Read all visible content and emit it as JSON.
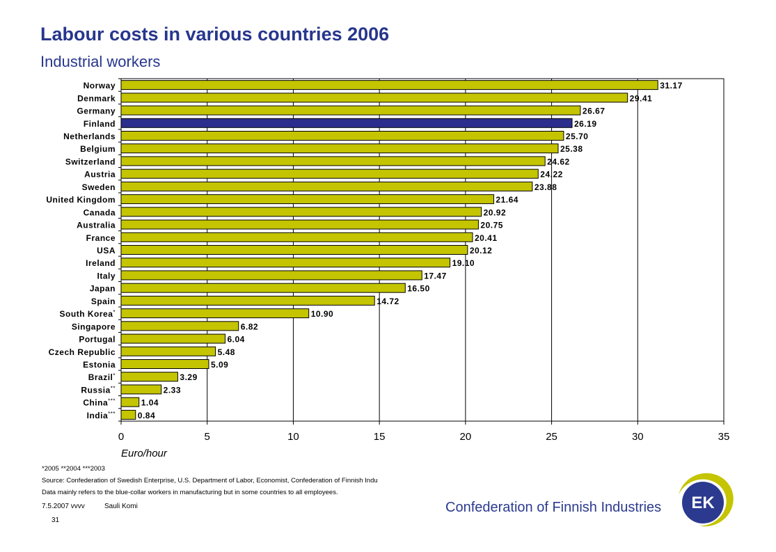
{
  "header": {
    "title": "Labour costs in various countries 2006",
    "subtitle": "Industrial workers"
  },
  "colors": {
    "bar": "#c4c400",
    "highlight_bar": "#2b2e8c",
    "title": "#27368c"
  },
  "chart_data": {
    "type": "bar",
    "orientation": "horizontal",
    "categories": [
      "Norway",
      "Denmark",
      "Germany",
      "Finland",
      "Netherlands",
      "Belgium",
      "Switzerland",
      "Austria",
      "Sweden",
      "United Kingdom",
      "Canada",
      "Australia",
      "France",
      "USA",
      "Ireland",
      "Italy",
      "Japan",
      "Spain",
      "South Korea",
      "Singapore",
      "Portugal",
      "Czech Republic",
      "Estonia",
      "Brazil",
      "Russia",
      "China",
      "India"
    ],
    "category_markers": [
      "",
      "",
      "",
      "",
      "",
      "",
      "",
      "",
      "",
      "",
      "",
      "",
      "",
      "",
      "",
      "",
      "",
      "",
      "*",
      "",
      "",
      "",
      "",
      "*",
      "**",
      "***",
      "***"
    ],
    "values": [
      31.17,
      29.41,
      26.67,
      26.19,
      25.7,
      25.38,
      24.62,
      24.22,
      23.88,
      21.64,
      20.92,
      20.75,
      20.41,
      20.12,
      19.1,
      17.47,
      16.5,
      14.72,
      10.9,
      6.82,
      6.04,
      5.48,
      5.09,
      3.29,
      2.33,
      1.04,
      0.84
    ],
    "value_labels": [
      "31.17",
      "29.41",
      "26.67",
      "26.19",
      "25.70",
      "25.38",
      "24.62",
      "24.22",
      "23.88",
      "21.64",
      "20.92",
      "20.75",
      "20.41",
      "20.12",
      "19.10",
      "17.47",
      "16.50",
      "14.72",
      "10.90",
      "6.82",
      "6.04",
      "5.48",
      "5.09",
      "3.29",
      "2.33",
      "1.04",
      "0.84"
    ],
    "highlight": "Finland",
    "xlim": [
      0,
      35
    ],
    "xticks": [
      "0",
      "5",
      "10",
      "15",
      "20",
      "25",
      "30",
      "35"
    ],
    "xlabel": "Euro/hour",
    "grid": "vertical"
  },
  "footnotes": {
    "markers": "*2005   **2004   ***2003",
    "source": "Source: Confederation of Swedish Enterprise, U.S. Department of Labor, Economist, Confederation of Finnish Indu",
    "note": "Data mainly refers to the blue-collar workers in manufacturing but in some countries to all employees."
  },
  "footer": {
    "left_text": "7.5.2007 vvvv",
    "middle_text": "Sauli Komi",
    "page_number": "31",
    "brand": "Confederation of Finnish Industries",
    "logo_text": "EK"
  }
}
